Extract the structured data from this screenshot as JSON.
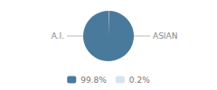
{
  "chart_data": {
    "type": "pie",
    "categories": [
      "99.8%",
      "0.2%"
    ],
    "values": [
      99.8,
      0.2
    ],
    "colors": [
      "#4a7a9b",
      "#d6e4ef"
    ],
    "annotations": [
      "A.I.",
      "ASIAN"
    ],
    "legend": "bottom"
  }
}
